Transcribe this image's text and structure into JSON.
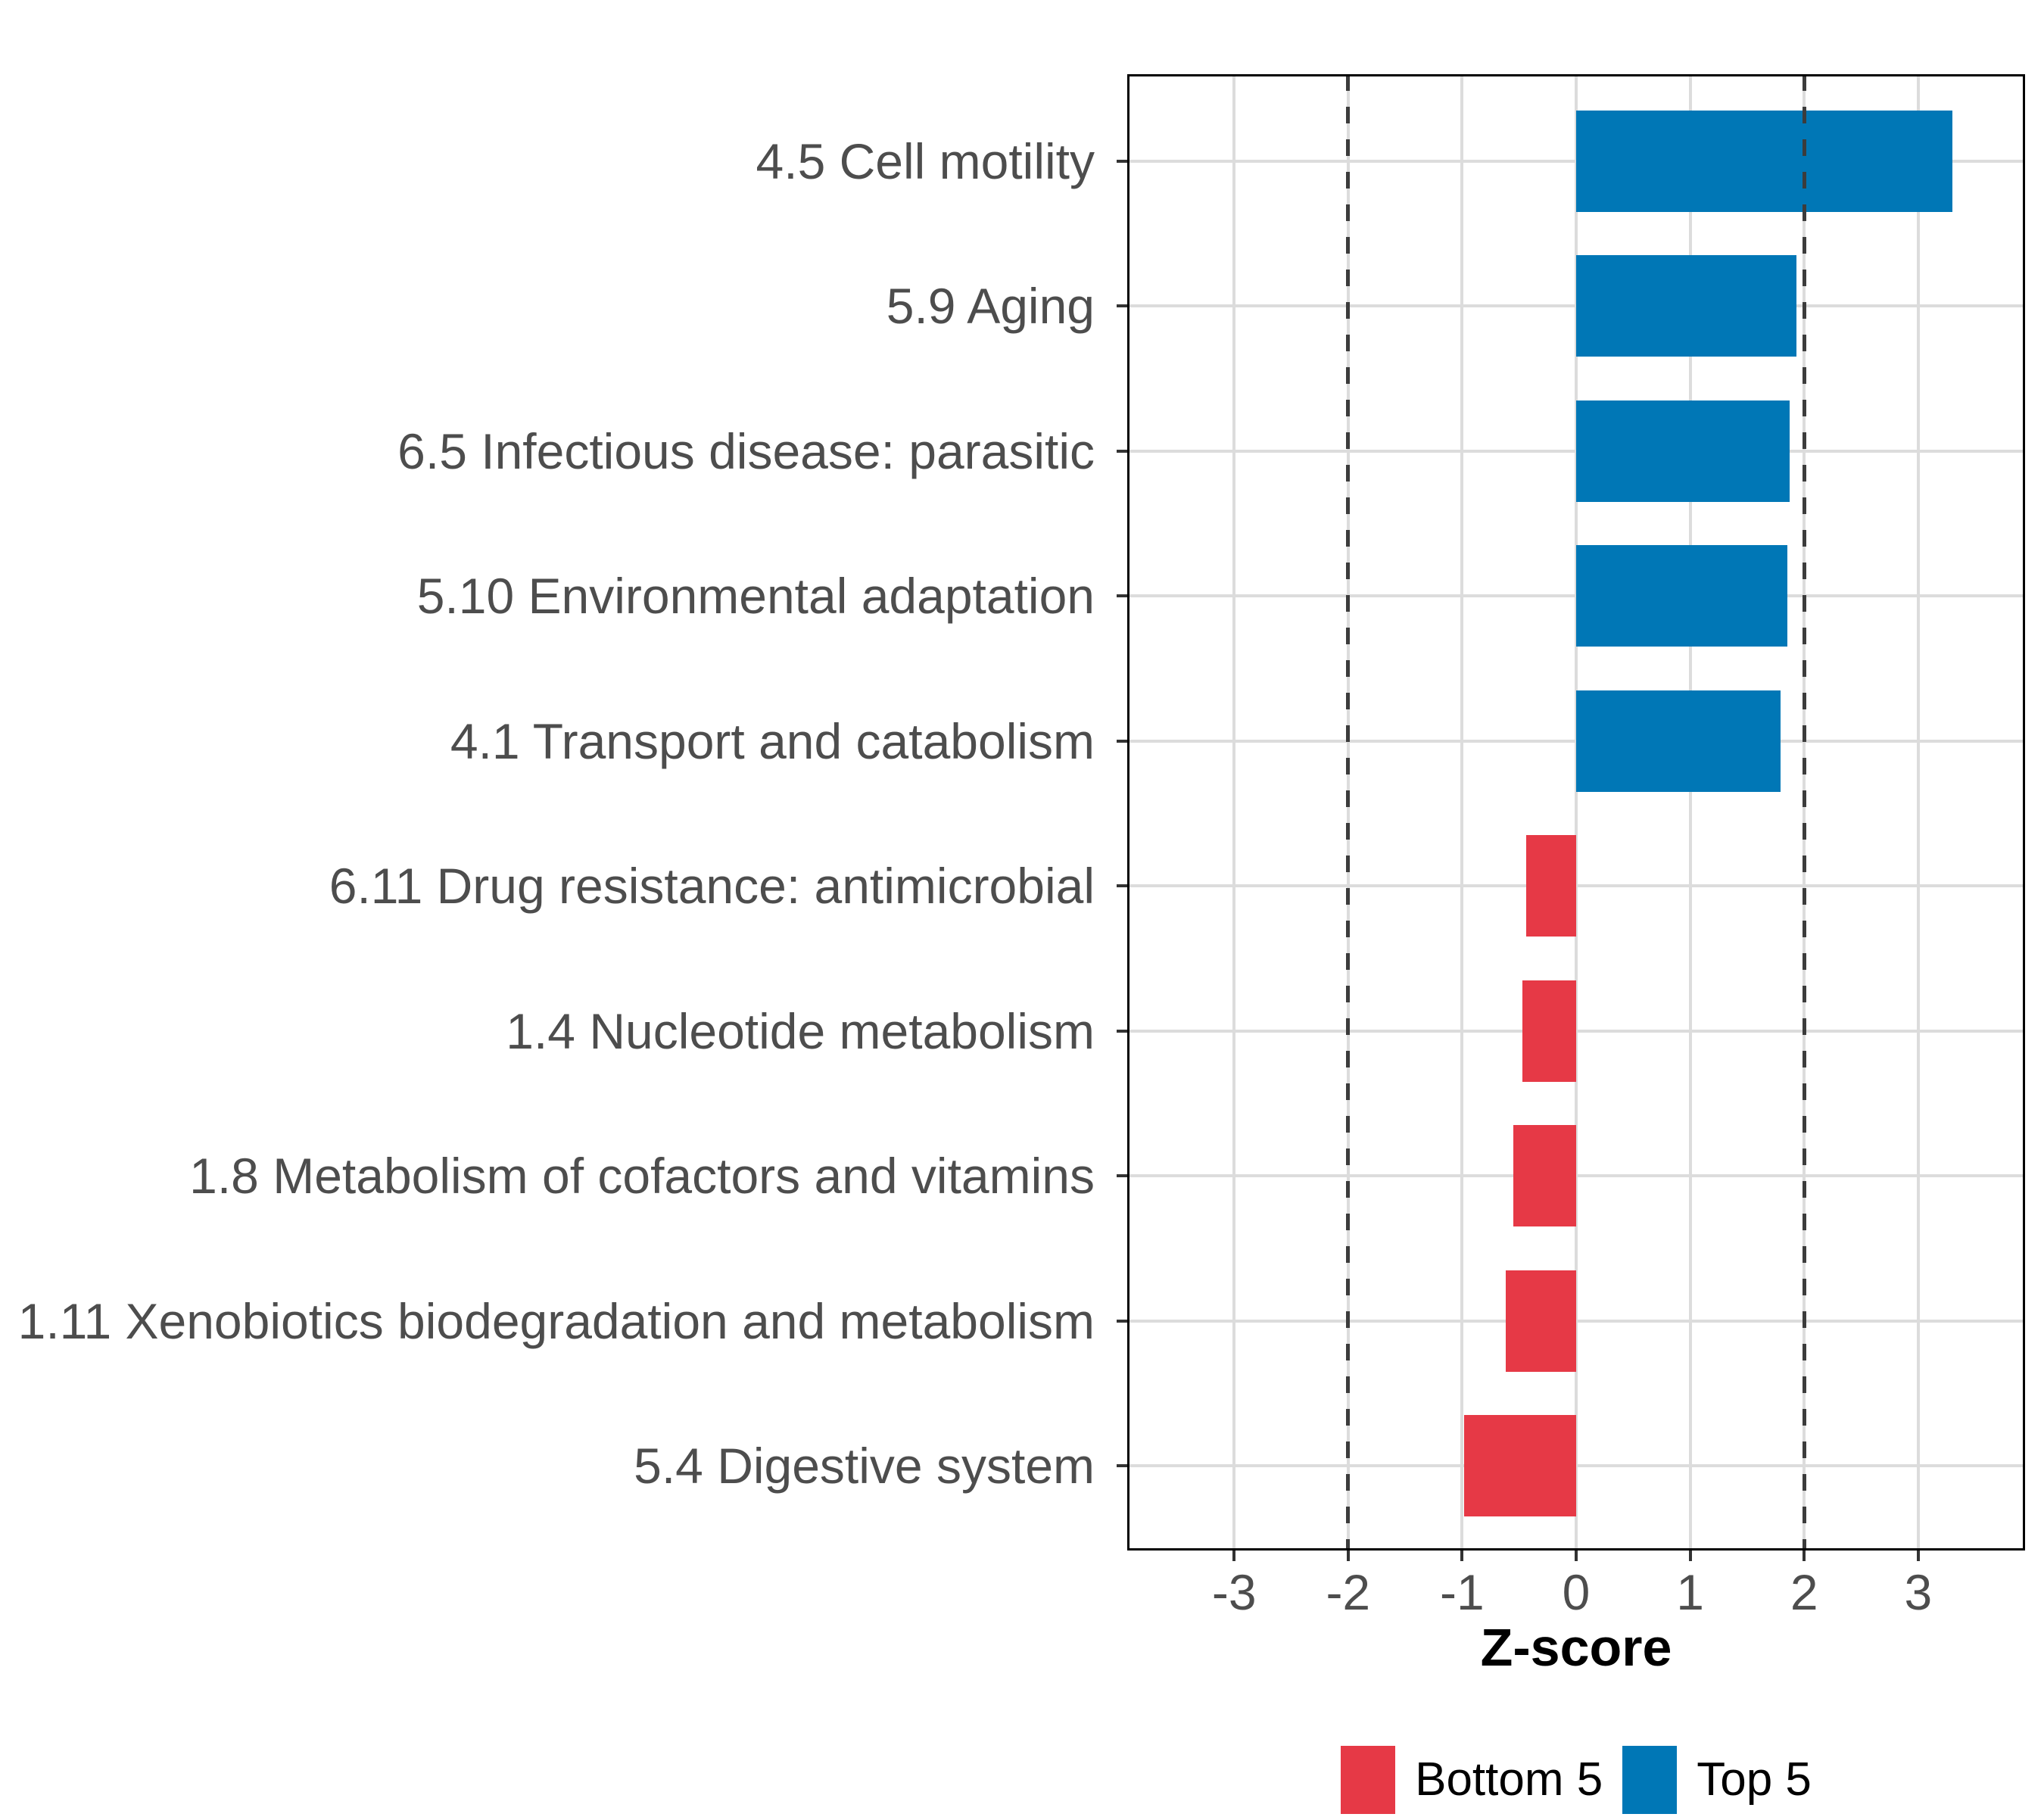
{
  "chart_data": {
    "type": "bar",
    "orientation": "horizontal",
    "title": "",
    "xlabel": "Z-score",
    "ylabel": "",
    "x_ticks": [
      -3,
      -2,
      -1,
      0,
      1,
      2,
      3
    ],
    "x_tick_labels": [
      "-3",
      "-2",
      "-1",
      "0",
      "1",
      "2",
      "3"
    ],
    "xlim": [
      -3.94,
      3.94
    ],
    "grid": "major vertical at integers, horizontal guide per category",
    "reference_lines": {
      "values": [
        -2,
        2
      ],
      "style": "dashed",
      "color": "#3C3C3C"
    },
    "bars": [
      {
        "label": "4.5 Cell motility",
        "value": 3.3,
        "group": "Top 5"
      },
      {
        "label": "5.9 Aging",
        "value": 1.93,
        "group": "Top 5"
      },
      {
        "label": "6.5 Infectious disease: parasitic",
        "value": 1.87,
        "group": "Top 5"
      },
      {
        "label": "5.10 Environmental adaptation",
        "value": 1.85,
        "group": "Top 5"
      },
      {
        "label": "4.1 Transport and catabolism",
        "value": 1.79,
        "group": "Top 5"
      },
      {
        "label": "6.11 Drug resistance: antimicrobial",
        "value": -0.44,
        "group": "Bottom 5"
      },
      {
        "label": "1.4 Nucleotide metabolism",
        "value": -0.47,
        "group": "Bottom 5"
      },
      {
        "label": "1.8 Metabolism of cofactors and vitamins",
        "value": -0.55,
        "group": "Bottom 5"
      },
      {
        "label": "1.11 Xenobiotics biodegradation and metabolism",
        "value": -0.62,
        "group": "Bottom 5"
      },
      {
        "label": "5.4 Digestive system",
        "value": -0.98,
        "group": "Bottom 5"
      }
    ],
    "legend": {
      "position": "bottom",
      "items": [
        {
          "label": "Bottom 5",
          "color": "#E63946"
        },
        {
          "label": "Top 5",
          "color": "#0077B6"
        }
      ]
    }
  },
  "style": {
    "bar_colors": {
      "Top 5": "#0077B6",
      "Bottom 5": "#E63946"
    },
    "background": "#FFFFFF",
    "grid_color": "#DCDCDC",
    "axis_text_color": "#4D4D4D",
    "tick_color": "#333333",
    "panel_border_color": "#000000",
    "axis_title_color": "#000000",
    "legend_text_color": "#000000"
  }
}
